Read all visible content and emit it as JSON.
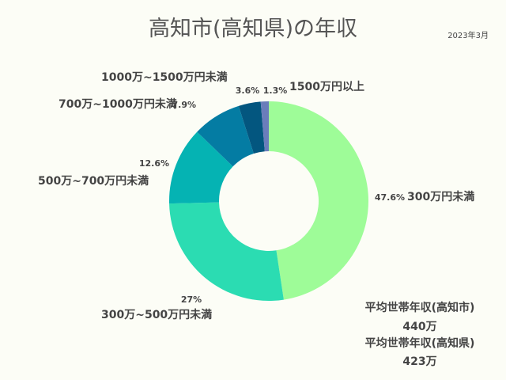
{
  "title": "高知市(高知県)の年収",
  "date": "2023年3月",
  "chart_data": {
    "type": "pie",
    "title": "高知市(高知県)の年収",
    "categories": [
      "300万円未満",
      "300万~500万円未満",
      "500万~700万円未満",
      "700万~1000万円未満",
      "1000万~1500万円未満",
      "1500万円以上"
    ],
    "values": [
      47.6,
      27,
      12.6,
      7.9,
      3.6,
      1.3
    ],
    "value_labels": [
      "47.6%",
      "27%",
      "12.6%",
      "7.9%",
      "3.6%",
      "1.3%"
    ],
    "colors": [
      "#9efc98",
      "#2bdcb2",
      "#05b3b3",
      "#047ca3",
      "#03567f",
      "#6a7dbb"
    ],
    "donut": true
  },
  "averages": [
    {
      "label": "平均世帯年収(高知市)",
      "value": "440万"
    },
    {
      "label": "平均世帯年収(高知県)",
      "value": "423万"
    }
  ]
}
